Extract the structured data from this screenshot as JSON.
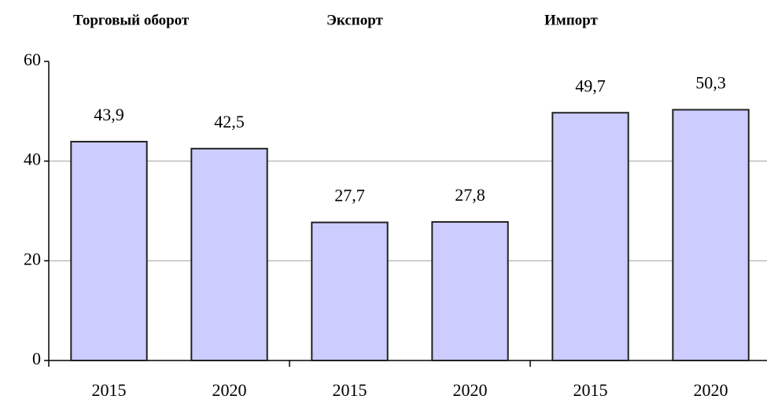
{
  "chart_data": {
    "type": "bar",
    "groups": [
      "Торговый оборот",
      "Экспорт",
      "Импорт"
    ],
    "categories": [
      "2015",
      "2020",
      "2015",
      "2020",
      "2015",
      "2020"
    ],
    "values": [
      43.9,
      42.5,
      27.7,
      27.8,
      49.7,
      50.3
    ],
    "value_labels": [
      "43,9",
      "42,5",
      "27,7",
      "27,8",
      "49,7",
      "50,3"
    ],
    "color": "#ccccff",
    "ylim": [
      0,
      60
    ],
    "yticks": [
      0,
      20,
      40,
      60
    ],
    "grid": true
  }
}
